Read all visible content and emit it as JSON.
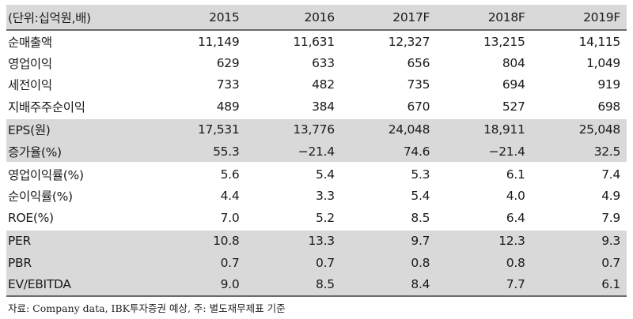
{
  "table": {
    "unit_label": "(단위:십억원,배)",
    "years": [
      "2015",
      "2016",
      "2017F",
      "2018F",
      "2019F"
    ],
    "rows": [
      {
        "label": "순매출액",
        "values": [
          "11,149",
          "11,631",
          "12,327",
          "13,215",
          "14,115"
        ]
      },
      {
        "label": "영업이익",
        "values": [
          "629",
          "633",
          "656",
          "804",
          "1,049"
        ]
      },
      {
        "label": "세전이익",
        "values": [
          "733",
          "482",
          "735",
          "694",
          "919"
        ]
      },
      {
        "label": "지배주주순이익",
        "values": [
          "489",
          "384",
          "670",
          "527",
          "698"
        ]
      },
      {
        "label": "EPS(원)",
        "values": [
          "17,531",
          "13,776",
          "24,048",
          "18,911",
          "25,048"
        ]
      },
      {
        "label": "증가율(%)",
        "values": [
          "55.3",
          "−21.4",
          "74.6",
          "−21.4",
          "32.5"
        ]
      },
      {
        "label": "영업이익률(%)",
        "values": [
          "5.6",
          "5.4",
          "5.3",
          "6.1",
          "7.4"
        ]
      },
      {
        "label": "순이익률(%)",
        "values": [
          "4.4",
          "3.3",
          "5.4",
          "4.0",
          "4.9"
        ]
      },
      {
        "label": "ROE(%)",
        "values": [
          "7.0",
          "5.2",
          "8.5",
          "6.4",
          "7.9"
        ]
      },
      {
        "label": "PER",
        "values": [
          "10.8",
          "13.3",
          "9.7",
          "12.3",
          "9.3"
        ]
      },
      {
        "label": "PBR",
        "values": [
          "0.7",
          "0.7",
          "0.8",
          "0.8",
          "0.7"
        ]
      },
      {
        "label": "EV/EBITDA",
        "values": [
          "9.0",
          "8.5",
          "8.4",
          "7.7",
          "6.1"
        ]
      }
    ]
  },
  "footnote": "자료: Company data, IBK투자증권 예상, 주: 별도재무제표 기준"
}
